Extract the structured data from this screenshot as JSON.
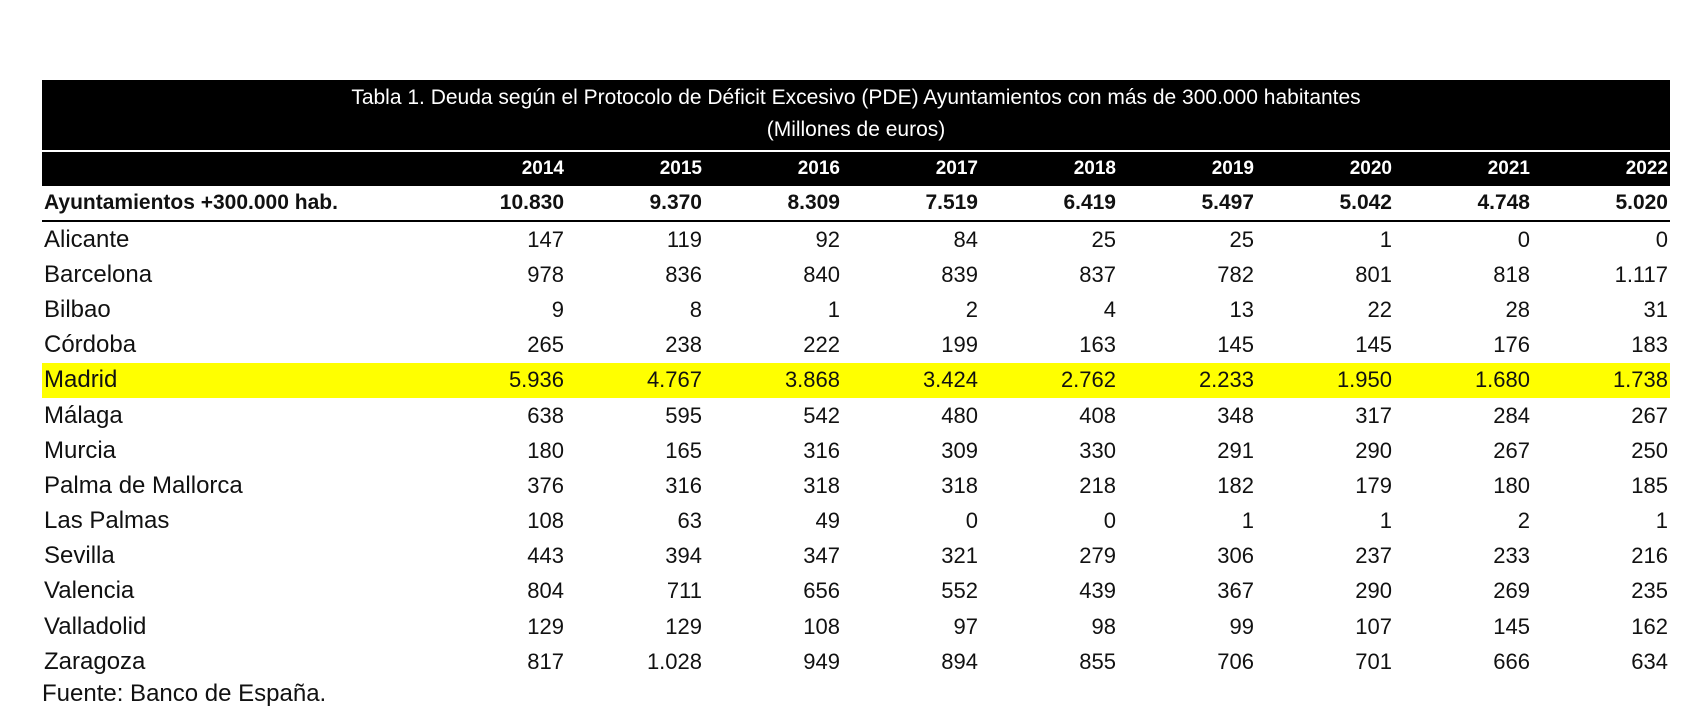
{
  "table": {
    "title": "Tabla 1. Deuda según el Protocolo de Déficit Excesivo (PDE) Ayuntamientos con más de 300.000 habitantes",
    "subtitle": "(Millones de euros)",
    "years": [
      "2014",
      "2015",
      "2016",
      "2017",
      "2018",
      "2019",
      "2020",
      "2021",
      "2022"
    ],
    "total": {
      "label": "Ayuntamientos +300.000 hab.",
      "values": [
        "10.830",
        "9.370",
        "8.309",
        "7.519",
        "6.419",
        "5.497",
        "5.042",
        "4.748",
        "5.020"
      ]
    },
    "rows": [
      {
        "label": "Alicante",
        "values": [
          "147",
          "119",
          "92",
          "84",
          "25",
          "25",
          "1",
          "0",
          "0"
        ],
        "highlight": false
      },
      {
        "label": "Barcelona",
        "values": [
          "978",
          "836",
          "840",
          "839",
          "837",
          "782",
          "801",
          "818",
          "1.117"
        ],
        "highlight": false
      },
      {
        "label": "Bilbao",
        "values": [
          "9",
          "8",
          "1",
          "2",
          "4",
          "13",
          "22",
          "28",
          "31"
        ],
        "highlight": false
      },
      {
        "label": "Córdoba",
        "values": [
          "265",
          "238",
          "222",
          "199",
          "163",
          "145",
          "145",
          "176",
          "183"
        ],
        "highlight": false
      },
      {
        "label": "Madrid",
        "values": [
          "5.936",
          "4.767",
          "3.868",
          "3.424",
          "2.762",
          "2.233",
          "1.950",
          "1.680",
          "1.738"
        ],
        "highlight": true
      },
      {
        "label": "Málaga",
        "values": [
          "638",
          "595",
          "542",
          "480",
          "408",
          "348",
          "317",
          "284",
          "267"
        ],
        "highlight": false
      },
      {
        "label": "Murcia",
        "values": [
          "180",
          "165",
          "316",
          "309",
          "330",
          "291",
          "290",
          "267",
          "250"
        ],
        "highlight": false
      },
      {
        "label": "Palma de Mallorca",
        "values": [
          "376",
          "316",
          "318",
          "318",
          "218",
          "182",
          "179",
          "180",
          "185"
        ],
        "highlight": false
      },
      {
        "label": "Las Palmas",
        "values": [
          "108",
          "63",
          "49",
          "0",
          "0",
          "1",
          "1",
          "2",
          "1"
        ],
        "highlight": false
      },
      {
        "label": "Sevilla",
        "values": [
          "443",
          "394",
          "347",
          "321",
          "279",
          "306",
          "237",
          "233",
          "216"
        ],
        "highlight": false
      },
      {
        "label": "Valencia",
        "values": [
          "804",
          "711",
          "656",
          "552",
          "439",
          "367",
          "290",
          "269",
          "235"
        ],
        "highlight": false
      },
      {
        "label": "Valladolid",
        "values": [
          "129",
          "129",
          "108",
          "97",
          "98",
          "99",
          "107",
          "145",
          "162"
        ],
        "highlight": false
      },
      {
        "label": "Zaragoza",
        "values": [
          "817",
          "1.028",
          "949",
          "894",
          "855",
          "706",
          "701",
          "666",
          "634"
        ],
        "highlight": false
      }
    ],
    "highlight_color": "#ffff00"
  },
  "source": "Fuente: Banco de España."
}
